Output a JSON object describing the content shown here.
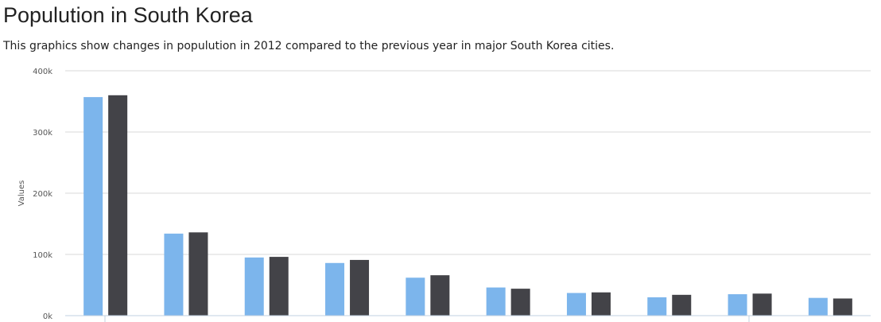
{
  "header": {
    "title": "Populution in South Korea",
    "subtitle": "This graphics show changes in populution in 2012 compared to the previous year in major South Korea cities."
  },
  "colors": {
    "series_2011": "#7cb5ec",
    "series_2012": "#434348",
    "grid": "#d8d8d8",
    "axis": "#c0d0e0"
  },
  "chart_data": {
    "type": "bar",
    "categories": [
      "",
      "",
      "",
      "",
      "",
      "",
      "",
      "",
      "",
      ""
    ],
    "series": [
      {
        "values": [
          357000,
          134000,
          95000,
          86000,
          62000,
          46000,
          37000,
          30000,
          35000,
          29000
        ]
      },
      {
        "values": [
          360000,
          136000,
          96000,
          91000,
          66000,
          44000,
          38000,
          34000,
          36000,
          28000
        ]
      }
    ],
    "ylabel": "Values",
    "ylim": [
      0,
      400000
    ],
    "yticks": [
      0,
      100000,
      200000,
      300000,
      400000
    ],
    "ytick_labels": [
      "0k",
      "100k",
      "200k",
      "300k",
      "400k"
    ],
    "grid": true,
    "legend": "none"
  }
}
